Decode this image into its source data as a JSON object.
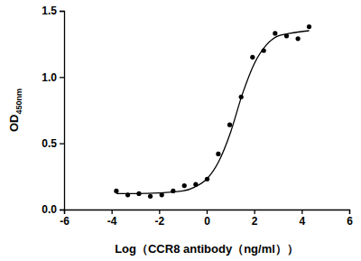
{
  "chart_data": {
    "type": "scatter",
    "xlabel": "Log（CCR8 antibody（ng/ml））",
    "ylabel": "OD450nm",
    "xlim": [
      -6,
      6
    ],
    "xticks": [
      -6,
      -4,
      -2,
      0,
      2,
      4,
      6
    ],
    "ylim": [
      0,
      1.5
    ],
    "yticks": [
      {
        "value": 0,
        "label": "0.0"
      },
      {
        "value": 0.5,
        "label": "0.5"
      },
      {
        "value": 1,
        "label": "1.0"
      },
      {
        "value": 1.5,
        "label": "1.5"
      }
    ],
    "grid": false,
    "series": [
      {
        "type": "scatter",
        "marker": "circle",
        "color": "#000000",
        "x": [
          -3.8,
          -3.32,
          -2.85,
          -2.37,
          -1.89,
          -1.41,
          -0.94,
          -0.46,
          0.02,
          0.49,
          0.97,
          1.45,
          1.93,
          2.4,
          2.88,
          3.36,
          3.84,
          4.31
        ],
        "values": [
          0.14,
          0.11,
          0.12,
          0.1,
          0.11,
          0.14,
          0.18,
          0.19,
          0.23,
          0.42,
          0.64,
          0.85,
          1.15,
          1.2,
          1.33,
          1.31,
          1.29,
          1.38
        ]
      },
      {
        "type": "line",
        "line_style": "solid",
        "color": "#000000",
        "x": [
          -3.8,
          -3,
          -2,
          -1,
          -0.5,
          0,
          0.5,
          1,
          1.5,
          2,
          2.5,
          3,
          3.5,
          4.31
        ],
        "values": [
          0.12,
          0.12,
          0.125,
          0.14,
          0.17,
          0.23,
          0.36,
          0.58,
          0.87,
          1.1,
          1.24,
          1.31,
          1.33,
          1.35
        ]
      }
    ]
  }
}
